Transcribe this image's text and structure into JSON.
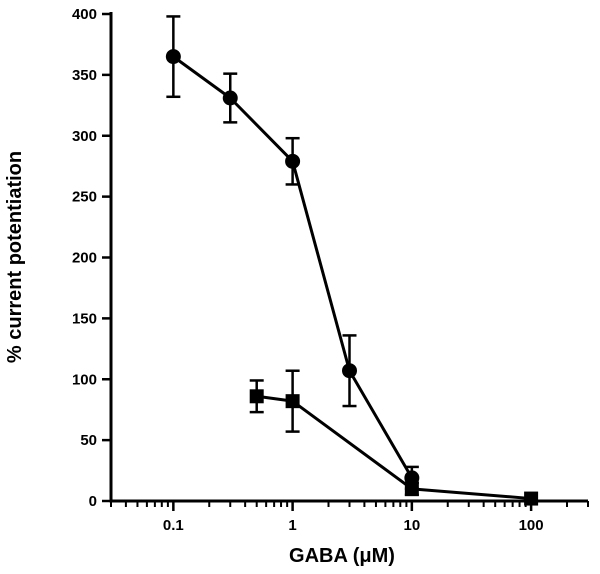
{
  "chart_data": {
    "type": "line",
    "xlabel": "GABA (μM)",
    "ylabel": "% current potentiation",
    "xscale": "log",
    "xlim": [
      0.03,
      300
    ],
    "ylim": [
      0,
      400
    ],
    "x_ticks": [
      0.1,
      1,
      10,
      100
    ],
    "x_tick_labels": [
      "0.1",
      "1",
      "10",
      "100"
    ],
    "y_ticks": [
      0,
      50,
      100,
      150,
      200,
      250,
      300,
      350,
      400
    ],
    "y_tick_labels": [
      "0",
      "50",
      "100",
      "150",
      "200",
      "250",
      "300",
      "350",
      "400"
    ],
    "grid": false,
    "legend": "none",
    "series": [
      {
        "marker": "circle",
        "color": "#000000",
        "x": [
          0.1,
          0.3,
          1,
          3,
          10
        ],
        "y": [
          365,
          331,
          279,
          107,
          19
        ],
        "error": [
          33,
          20,
          19,
          29,
          9
        ]
      },
      {
        "marker": "square",
        "color": "#000000",
        "x": [
          0.5,
          1,
          10,
          100
        ],
        "y": [
          86,
          82,
          10,
          2
        ],
        "error": [
          13,
          25,
          5,
          0
        ]
      }
    ]
  }
}
